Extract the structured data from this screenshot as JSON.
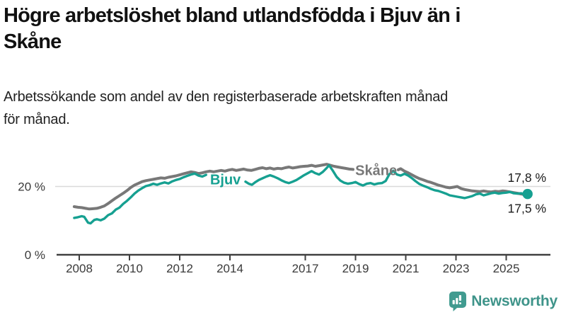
{
  "header": {
    "title_line1": "Högre arbetslöshet bland utlandsfödda i Bjuv än i",
    "title_line2": "Skåne",
    "subtitle_line1": "Arbetssökande som andel av den registerbaserade arbetskraften månad",
    "subtitle_line2": "för månad."
  },
  "colors": {
    "bjuv": "#16a091",
    "skane": "#787878",
    "grid": "#d9d9d9",
    "axis": "#404040",
    "tick_text": "#3a3a3a",
    "value_text": "#1a1a1a",
    "logo": "#419b90"
  },
  "logo": {
    "text": "Newsworthy",
    "icon": "bar-chart-speech-bubble-icon"
  },
  "chart_data": {
    "type": "line",
    "title": "Högre arbetslöshet bland utlandsfödda i Bjuv än i Skåne",
    "subtitle": "Arbetssökande som andel av den registerbaserade arbetskraften månad för månad.",
    "xlabel": "",
    "ylabel": "",
    "xlim": [
      2007.1,
      2026.7
    ],
    "ylim": [
      0,
      31
    ],
    "grid": "y-at-20-only",
    "legend_position": "inline-labels",
    "x_ticks": [
      2008,
      2010,
      2012,
      2014,
      2017,
      2019,
      2021,
      2023,
      2025
    ],
    "y_ticks": [
      {
        "value": 0,
        "label": "0 %"
      },
      {
        "value": 20,
        "label": "20 %"
      }
    ],
    "series": [
      {
        "name": "Skåne",
        "color_key": "skane",
        "line_width": 4,
        "inline_label": {
          "text": "Skåne",
          "x": 2019.82,
          "y": 24.8
        },
        "end_label": {
          "text": "17,5 %",
          "position": "below"
        },
        "end_value": 17.5,
        "segments": [
          [
            [
              2007.8,
              14.1
            ],
            [
              2007.95,
              13.9
            ],
            [
              2008.1,
              13.8
            ],
            [
              2008.25,
              13.6
            ],
            [
              2008.4,
              13.4
            ],
            [
              2008.55,
              13.5
            ],
            [
              2008.7,
              13.6
            ],
            [
              2008.85,
              13.9
            ],
            [
              2009.0,
              14.3
            ],
            [
              2009.15,
              15.0
            ],
            [
              2009.3,
              15.8
            ],
            [
              2009.45,
              16.6
            ],
            [
              2009.6,
              17.3
            ],
            [
              2009.75,
              18.0
            ],
            [
              2009.9,
              18.8
            ],
            [
              2010.05,
              19.7
            ],
            [
              2010.2,
              20.4
            ],
            [
              2010.35,
              20.9
            ],
            [
              2010.5,
              21.4
            ],
            [
              2010.65,
              21.7
            ],
            [
              2010.8,
              21.9
            ],
            [
              2010.95,
              22.1
            ],
            [
              2011.1,
              22.3
            ],
            [
              2011.25,
              22.5
            ],
            [
              2011.4,
              22.4
            ],
            [
              2011.55,
              22.7
            ],
            [
              2011.7,
              22.9
            ],
            [
              2011.85,
              23.1
            ],
            [
              2012.0,
              23.4
            ],
            [
              2012.15,
              23.7
            ],
            [
              2012.3,
              24.0
            ],
            [
              2012.45,
              24.3
            ],
            [
              2012.6,
              24.1
            ],
            [
              2012.75,
              23.8
            ],
            [
              2012.9,
              24.0
            ],
            [
              2013.05,
              24.3
            ],
            [
              2013.2,
              24.5
            ],
            [
              2013.35,
              24.3
            ],
            [
              2013.5,
              24.5
            ],
            [
              2013.65,
              24.7
            ],
            [
              2013.8,
              24.5
            ],
            [
              2013.95,
              24.8
            ],
            [
              2014.1,
              25.0
            ],
            [
              2014.25,
              24.7
            ],
            [
              2014.4,
              24.9
            ],
            [
              2014.55,
              25.1
            ],
            [
              2014.7,
              24.8
            ],
            [
              2014.85,
              24.7
            ],
            [
              2015.0,
              25.0
            ],
            [
              2015.15,
              25.3
            ],
            [
              2015.3,
              25.5
            ],
            [
              2015.45,
              25.2
            ],
            [
              2015.6,
              25.4
            ],
            [
              2015.75,
              25.1
            ],
            [
              2015.9,
              25.3
            ],
            [
              2016.05,
              25.2
            ],
            [
              2016.2,
              25.5
            ],
            [
              2016.35,
              25.7
            ],
            [
              2016.5,
              25.4
            ],
            [
              2016.65,
              25.6
            ],
            [
              2016.8,
              25.8
            ],
            [
              2016.95,
              25.9
            ],
            [
              2017.1,
              26.0
            ],
            [
              2017.25,
              26.2
            ],
            [
              2017.4,
              25.9
            ],
            [
              2017.55,
              26.1
            ],
            [
              2017.7,
              26.3
            ],
            [
              2017.85,
              26.5
            ],
            [
              2018.0,
              26.2
            ],
            [
              2018.15,
              25.9
            ],
            [
              2018.3,
              25.7
            ],
            [
              2018.45,
              25.5
            ],
            [
              2018.6,
              25.3
            ],
            [
              2018.75,
              25.1
            ],
            [
              2018.9,
              25.0
            ]
          ],
          [
            [
              2020.7,
              24.9
            ],
            [
              2020.8,
              25.2
            ],
            [
              2020.95,
              24.5
            ],
            [
              2021.1,
              24.0
            ],
            [
              2021.25,
              23.4
            ],
            [
              2021.4,
              22.8
            ],
            [
              2021.55,
              22.3
            ],
            [
              2021.7,
              21.9
            ],
            [
              2021.85,
              21.5
            ],
            [
              2022.0,
              21.2
            ],
            [
              2022.15,
              20.8
            ],
            [
              2022.3,
              20.4
            ],
            [
              2022.45,
              20.1
            ],
            [
              2022.6,
              19.8
            ],
            [
              2022.75,
              19.6
            ],
            [
              2022.9,
              19.8
            ],
            [
              2023.05,
              20.0
            ],
            [
              2023.2,
              19.4
            ],
            [
              2023.35,
              19.1
            ],
            [
              2023.5,
              18.9
            ],
            [
              2023.65,
              18.7
            ],
            [
              2023.8,
              18.6
            ],
            [
              2023.95,
              18.5
            ],
            [
              2024.1,
              18.7
            ],
            [
              2024.25,
              18.5
            ],
            [
              2024.4,
              18.4
            ],
            [
              2024.55,
              18.6
            ],
            [
              2024.7,
              18.5
            ],
            [
              2024.85,
              18.7
            ],
            [
              2025.0,
              18.6
            ],
            [
              2025.15,
              18.4
            ],
            [
              2025.3,
              18.2
            ],
            [
              2025.45,
              18.0
            ],
            [
              2025.6,
              17.8
            ],
            [
              2025.72,
              17.6
            ],
            [
              2025.85,
              17.5
            ]
          ]
        ]
      },
      {
        "name": "Bjuv",
        "color_key": "bjuv",
        "line_width": 3.4,
        "inline_label": {
          "text": "Bjuv",
          "x": 2013.82,
          "y": 22.1
        },
        "end_label": {
          "text": "17,8 %",
          "position": "above"
        },
        "end_value": 17.8,
        "end_dot": true,
        "segments": [
          [
            [
              2007.8,
              10.8
            ],
            [
              2007.95,
              11.0
            ],
            [
              2008.1,
              11.3
            ],
            [
              2008.2,
              11.1
            ],
            [
              2008.35,
              9.4
            ],
            [
              2008.45,
              9.2
            ],
            [
              2008.6,
              10.2
            ],
            [
              2008.7,
              10.4
            ],
            [
              2008.85,
              10.1
            ],
            [
              2009.0,
              10.6
            ],
            [
              2009.15,
              11.6
            ],
            [
              2009.3,
              12.1
            ],
            [
              2009.45,
              13.2
            ],
            [
              2009.6,
              13.8
            ],
            [
              2009.75,
              14.9
            ],
            [
              2009.9,
              15.8
            ],
            [
              2010.05,
              16.8
            ],
            [
              2010.2,
              17.9
            ],
            [
              2010.35,
              18.8
            ],
            [
              2010.5,
              19.5
            ],
            [
              2010.65,
              20.1
            ],
            [
              2010.8,
              20.4
            ],
            [
              2010.95,
              20.8
            ],
            [
              2011.1,
              20.5
            ],
            [
              2011.25,
              20.9
            ],
            [
              2011.4,
              21.2
            ],
            [
              2011.55,
              20.9
            ],
            [
              2011.7,
              21.5
            ],
            [
              2011.85,
              21.9
            ],
            [
              2012.0,
              22.2
            ],
            [
              2012.15,
              22.7
            ],
            [
              2012.3,
              23.1
            ],
            [
              2012.45,
              23.5
            ],
            [
              2012.6,
              23.8
            ],
            [
              2012.75,
              23.2
            ],
            [
              2012.9,
              22.9
            ],
            [
              2013.05,
              23.4
            ]
          ],
          [
            [
              2014.62,
              21.4
            ],
            [
              2014.75,
              20.8
            ],
            [
              2014.88,
              20.5
            ],
            [
              2015.0,
              21.2
            ],
            [
              2015.15,
              21.9
            ],
            [
              2015.3,
              22.4
            ],
            [
              2015.45,
              22.9
            ],
            [
              2015.6,
              23.3
            ],
            [
              2015.75,
              22.9
            ],
            [
              2015.9,
              22.4
            ],
            [
              2016.05,
              21.8
            ],
            [
              2016.2,
              21.3
            ],
            [
              2016.35,
              21.0
            ],
            [
              2016.5,
              21.4
            ],
            [
              2016.65,
              21.9
            ],
            [
              2016.8,
              22.6
            ],
            [
              2016.95,
              23.3
            ],
            [
              2017.1,
              23.9
            ],
            [
              2017.25,
              24.5
            ],
            [
              2017.4,
              23.9
            ],
            [
              2017.55,
              23.5
            ],
            [
              2017.7,
              24.3
            ],
            [
              2017.85,
              25.4
            ],
            [
              2017.95,
              26.2
            ],
            [
              2018.1,
              24.6
            ],
            [
              2018.25,
              22.8
            ],
            [
              2018.4,
              21.7
            ],
            [
              2018.55,
              21.1
            ],
            [
              2018.7,
              20.8
            ],
            [
              2018.85,
              21.0
            ],
            [
              2019.0,
              21.3
            ],
            [
              2019.15,
              20.7
            ],
            [
              2019.3,
              20.3
            ],
            [
              2019.45,
              20.8
            ],
            [
              2019.6,
              21.0
            ],
            [
              2019.75,
              20.6
            ],
            [
              2019.9,
              20.9
            ],
            [
              2020.05,
              21.0
            ],
            [
              2020.2,
              21.6
            ],
            [
              2020.35,
              23.6
            ],
            [
              2020.5,
              24.6
            ],
            [
              2020.65,
              23.5
            ],
            [
              2020.8,
              23.2
            ],
            [
              2020.95,
              23.7
            ],
            [
              2021.1,
              23.2
            ],
            [
              2021.25,
              22.4
            ],
            [
              2021.4,
              21.5
            ],
            [
              2021.55,
              20.7
            ],
            [
              2021.7,
              20.2
            ],
            [
              2021.85,
              19.8
            ],
            [
              2022.0,
              19.3
            ],
            [
              2022.15,
              18.9
            ],
            [
              2022.3,
              18.7
            ],
            [
              2022.45,
              18.3
            ],
            [
              2022.6,
              17.9
            ],
            [
              2022.75,
              17.4
            ],
            [
              2022.9,
              17.2
            ],
            [
              2023.05,
              17.0
            ],
            [
              2023.2,
              16.8
            ],
            [
              2023.35,
              16.6
            ],
            [
              2023.5,
              16.9
            ],
            [
              2023.65,
              17.2
            ],
            [
              2023.8,
              17.7
            ],
            [
              2023.95,
              17.9
            ],
            [
              2024.1,
              17.4
            ],
            [
              2024.25,
              17.7
            ],
            [
              2024.4,
              18.0
            ],
            [
              2024.55,
              18.2
            ],
            [
              2024.7,
              17.9
            ],
            [
              2024.85,
              18.1
            ],
            [
              2025.0,
              18.2
            ],
            [
              2025.15,
              18.4
            ],
            [
              2025.3,
              18.0
            ],
            [
              2025.45,
              17.9
            ],
            [
              2025.6,
              18.0
            ],
            [
              2025.72,
              17.7
            ],
            [
              2025.85,
              17.8
            ]
          ]
        ]
      }
    ]
  }
}
